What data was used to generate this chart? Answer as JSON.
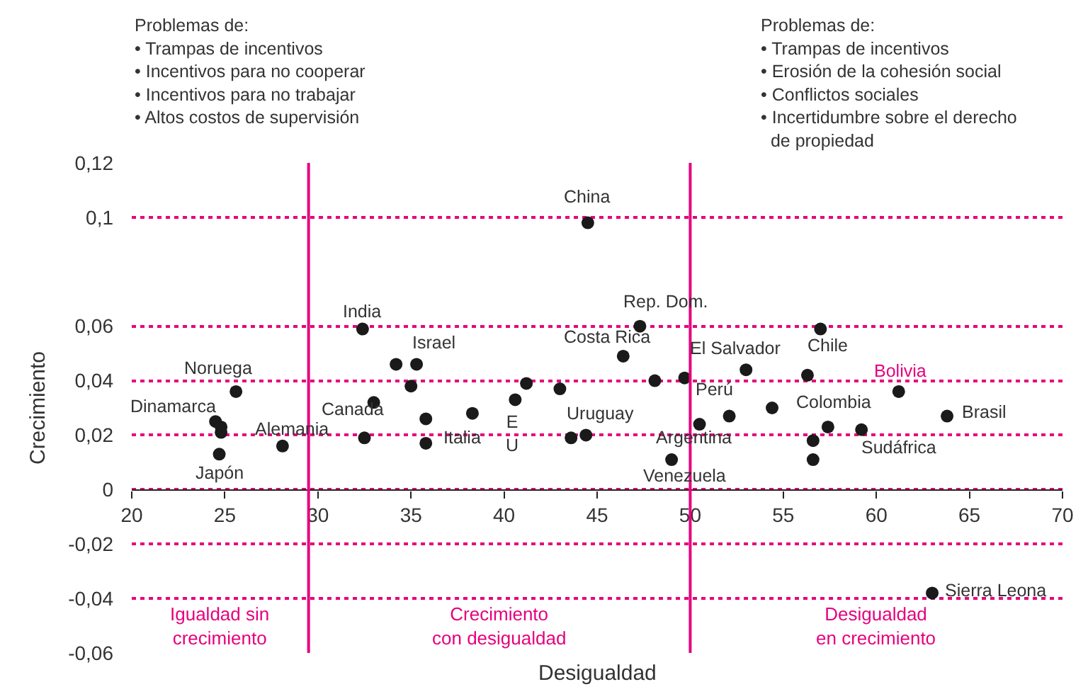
{
  "chart_data": {
    "type": "scatter",
    "xlabel": "Desigualdad",
    "ylabel": "Crecimiento",
    "xlim": [
      20,
      70
    ],
    "xticks": [
      20,
      25,
      30,
      35,
      40,
      45,
      50,
      55,
      60,
      65,
      70
    ],
    "ylim": [
      -0.06,
      0.12
    ],
    "yticks": [
      {
        "value": -0.06,
        "label": "-0,06"
      },
      {
        "value": -0.04,
        "label": "-0,04"
      },
      {
        "value": -0.02,
        "label": "-0,02"
      },
      0,
      {
        "value": 0.02,
        "label": "0,02"
      },
      {
        "value": 0.04,
        "label": "0,04"
      },
      {
        "value": 0.06,
        "label": "0,06"
      },
      {
        "value": 0.1,
        "label": "0,1"
      },
      {
        "value": 0.12,
        "label": "0,12"
      }
    ],
    "grid": "y",
    "marker": "circle",
    "ref_lines": [
      {
        "axis": "x",
        "value": 29.5,
        "color": "#e6007e"
      },
      {
        "axis": "x",
        "value": 50,
        "color": "#e6007e"
      }
    ],
    "series": [
      {
        "color": "#1a1a1a",
        "x": [
          24.5,
          24.8,
          24.8,
          24.7,
          25.6,
          28.1,
          32.4,
          33.0,
          32.5,
          34.2,
          35.3,
          35.0,
          35.8,
          35.8,
          38.3,
          40.6,
          41.2,
          43.0,
          43.6,
          44.4,
          44.5,
          46.4,
          47.3,
          48.1,
          49.7,
          49.0,
          50.5,
          52.1,
          53.0,
          54.4,
          56.3,
          57.0,
          57.4,
          56.6,
          56.6,
          59.2,
          61.2,
          63.8,
          63.0
        ],
        "values": [
          0.025,
          0.023,
          0.021,
          0.013,
          0.036,
          0.016,
          0.059,
          0.032,
          0.019,
          0.046,
          0.046,
          0.038,
          0.026,
          0.017,
          0.028,
          0.033,
          0.039,
          0.037,
          0.019,
          0.02,
          0.098,
          0.049,
          0.06,
          0.04,
          0.041,
          0.011,
          0.024,
          0.027,
          0.044,
          0.03,
          0.042,
          0.059,
          0.023,
          0.018,
          0.011,
          0.022,
          0.036,
          0.027,
          -0.038
        ]
      }
    ],
    "annotations": [
      "Problemas de:\n• Trampas de incentivos\n• Incentivos para no cooperar\n• Incentivos para no trabajar\n• Altos costos de supervisión",
      "Problemas de:\n• Trampas de incentivos\n• Erosión de la cohesión social\n• Conflictos sociales\n• Incertidumbre sobre el derecho\n  de propiedad",
      "Igualdad sin\ncrecimiento",
      "Crecimiento\ncon desigualdad",
      "Desigualdad\nen crecimiento",
      {
        "text": "Dinamarca",
        "x": 24.5,
        "y": 0.025
      },
      {
        "text": "Japón",
        "x": 24.7,
        "y": 0.013
      },
      {
        "text": "Noruega",
        "x": 25.6,
        "y": 0.036
      },
      {
        "text": "Alemania",
        "x": 28.1,
        "y": 0.016
      },
      {
        "text": "India",
        "x": 32.4,
        "y": 0.059
      },
      {
        "text": "Canada",
        "x": 33.0,
        "y": 0.032
      },
      {
        "text": "Israel",
        "x": 35.3,
        "y": 0.046
      },
      {
        "text": "Italia",
        "x": 35.8,
        "y": 0.017
      },
      {
        "text": "E\nU",
        "x": 40.6,
        "y": 0.033
      },
      {
        "text": "Uruguay",
        "x": 44.4,
        "y": 0.02
      },
      {
        "text": "China",
        "x": 44.5,
        "y": 0.098
      },
      {
        "text": "Costa Rica",
        "x": 46.4,
        "y": 0.049
      },
      {
        "text": "Rep. Dom.",
        "x": 47.3,
        "y": 0.06
      },
      {
        "text": "Venezuela",
        "x": 49.0,
        "y": 0.011
      },
      {
        "text": "Argentina",
        "x": 50.5,
        "y": 0.024
      },
      {
        "text": "Perú",
        "x": 52.1,
        "y": 0.027
      },
      {
        "text": "El Salvador",
        "x": 53.0,
        "y": 0.044
      },
      {
        "text": "Chile",
        "x": 57.0,
        "y": 0.059
      },
      {
        "text": "Colombia",
        "x": 57.4,
        "y": 0.023
      },
      {
        "text": "Sudáfrica",
        "x": 59.2,
        "y": 0.022
      },
      {
        "text": "Bolivia",
        "x": 61.2,
        "y": 0.036
      },
      {
        "text": "Brasil",
        "x": 63.8,
        "y": 0.027
      },
      {
        "text": "Sierra Leona",
        "x": 63.0,
        "y": -0.038
      }
    ]
  }
}
